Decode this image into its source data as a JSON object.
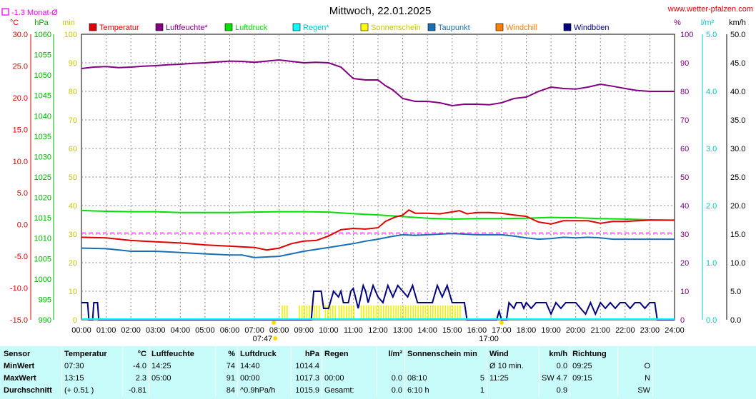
{
  "page": {
    "title": "Mittwoch, 22.01.2025",
    "site": "www.wetter-pfalzen.com",
    "month_avg_label": "-1.3 Monat-Ø"
  },
  "chart_data": {
    "type": "line",
    "title": "Mittwoch, 22.01.2025",
    "x_ticks": [
      "00:00",
      "01:00",
      "02:00",
      "03:00",
      "04:00",
      "05:00",
      "06:00",
      "07:00",
      "08:00",
      "09:00",
      "10:00",
      "11:00",
      "12:00",
      "13:00",
      "14:00",
      "15:00",
      "16:00",
      "17:00",
      "18:00",
      "19:00",
      "20:00",
      "21:00",
      "22:00",
      "23:00",
      "24:00"
    ],
    "sunrise": "07:47",
    "sunset": "17:00",
    "month_avg_temperature": -1.3,
    "axes": {
      "temp": {
        "unit": "°C",
        "range": [
          -15,
          30
        ],
        "ticks": [
          "30.0",
          "25.0",
          "20.0",
          "15.0",
          "10.0",
          "5.0",
          "0.0",
          "-5.0",
          "-10.0",
          "-15.0"
        ],
        "color": "#e00000"
      },
      "pressure": {
        "unit": "hPa",
        "range": [
          990,
          1060
        ],
        "ticks": [
          "1060",
          "1055",
          "1050",
          "1045",
          "1040",
          "1035",
          "1030",
          "1025",
          "1020",
          "1015",
          "1010",
          "1005",
          "1000",
          "995",
          "990"
        ],
        "color": "#00b000"
      },
      "minutes": {
        "unit": "min",
        "range": [
          0,
          100
        ],
        "ticks": [
          "100",
          "90",
          "80",
          "70",
          "60",
          "50",
          "40",
          "30",
          "20",
          "10",
          "0"
        ],
        "color": "#c8c800"
      },
      "humidity": {
        "unit": "%",
        "range": [
          0,
          100
        ],
        "ticks": [
          "100",
          "90",
          "80",
          "70",
          "60",
          "50",
          "40",
          "30",
          "20",
          "10",
          "0"
        ],
        "color": "#800080"
      },
      "rain": {
        "unit": "l/m²",
        "range": [
          0,
          5
        ],
        "ticks": [
          "5.0",
          "4.0",
          "3.0",
          "2.0",
          "1.0",
          "0.0"
        ],
        "color": "#00c8c8"
      },
      "wind": {
        "unit": "km/h",
        "range": [
          0,
          50
        ],
        "ticks": [
          "50.0",
          "45.0",
          "40.0",
          "35.0",
          "30.0",
          "25.0",
          "20.0",
          "15.0",
          "10.0",
          "5.0",
          "0.0"
        ],
        "color": "#000000"
      }
    },
    "legend": [
      {
        "name": "Temperatur",
        "color": "#e00000"
      },
      {
        "name": "Luftfeuchte*",
        "color": "#800080"
      },
      {
        "name": "Luftdruck",
        "color": "#00e000"
      },
      {
        "name": "Regen*",
        "color": "#00ffff"
      },
      {
        "name": "Sonnenschein",
        "color": "#ffff00"
      },
      {
        "name": "Taupunkt",
        "color": "#1a6fb3"
      },
      {
        "name": "Windchill",
        "color": "#ff8000"
      },
      {
        "name": "Windböen",
        "color": "#000080"
      }
    ],
    "series": [
      {
        "name": "Luftfeuchte*",
        "axis": "humidity",
        "color": "#800080",
        "points": [
          [
            0,
            88
          ],
          [
            0.5,
            88.5
          ],
          [
            1,
            88.7
          ],
          [
            1.5,
            88.3
          ],
          [
            2,
            88.5
          ],
          [
            2.5,
            88.8
          ],
          [
            3,
            89
          ],
          [
            3.5,
            89.3
          ],
          [
            4,
            89.5
          ],
          [
            4.5,
            89.8
          ],
          [
            5,
            90
          ],
          [
            5.5,
            90.3
          ],
          [
            6,
            90.6
          ],
          [
            6.5,
            90.5
          ],
          [
            7,
            90.2
          ],
          [
            7.5,
            90.6
          ],
          [
            8,
            91
          ],
          [
            8.5,
            90.5
          ],
          [
            9,
            90
          ],
          [
            9.5,
            90.2
          ],
          [
            10,
            90
          ],
          [
            10.5,
            88.5
          ],
          [
            11,
            84.5
          ],
          [
            11.5,
            84
          ],
          [
            12,
            84
          ],
          [
            12.3,
            82
          ],
          [
            12.6,
            80.5
          ],
          [
            13,
            77.5
          ],
          [
            13.5,
            76.5
          ],
          [
            14,
            76.5
          ],
          [
            14.5,
            76
          ],
          [
            15,
            75
          ],
          [
            15.5,
            75.5
          ],
          [
            16,
            75.5
          ],
          [
            16.5,
            75.3
          ],
          [
            17,
            76
          ],
          [
            17.5,
            77.5
          ],
          [
            18,
            78
          ],
          [
            18.5,
            80
          ],
          [
            19,
            81.5
          ],
          [
            19.5,
            81
          ],
          [
            20,
            80.8
          ],
          [
            20.5,
            81.5
          ],
          [
            21,
            82.5
          ],
          [
            21.5,
            81.8
          ],
          [
            22,
            81
          ],
          [
            22.5,
            80.3
          ],
          [
            23,
            80
          ],
          [
            24,
            80
          ]
        ]
      },
      {
        "name": "Luftdruck",
        "axis": "pressure",
        "color": "#00e000",
        "points": [
          [
            0,
            1016.8
          ],
          [
            1,
            1016.6
          ],
          [
            2,
            1016.5
          ],
          [
            3,
            1016.5
          ],
          [
            4,
            1016.3
          ],
          [
            5,
            1016.3
          ],
          [
            6,
            1016.3
          ],
          [
            7,
            1016.4
          ],
          [
            8,
            1016.5
          ],
          [
            9,
            1016.5
          ],
          [
            10,
            1016.4
          ],
          [
            11,
            1016
          ],
          [
            12,
            1015.7
          ],
          [
            13,
            1015.3
          ],
          [
            14,
            1014.9
          ],
          [
            15,
            1014.7
          ],
          [
            16,
            1014.8
          ],
          [
            17,
            1014.8
          ],
          [
            18,
            1014.9
          ],
          [
            19,
            1015.1
          ],
          [
            20,
            1015.0
          ],
          [
            21,
            1014.8
          ],
          [
            22,
            1014.7
          ],
          [
            23,
            1014.5
          ],
          [
            24,
            1014.4
          ]
        ]
      },
      {
        "name": "Temperatur",
        "axis": "temp",
        "color": "#e00000",
        "points": [
          [
            0,
            -2.0
          ],
          [
            1,
            -2.1
          ],
          [
            2,
            -2.5
          ],
          [
            3,
            -2.7
          ],
          [
            4,
            -2.9
          ],
          [
            5,
            -3.2
          ],
          [
            6,
            -3.4
          ],
          [
            7,
            -3.6
          ],
          [
            7.5,
            -4.0
          ],
          [
            8,
            -3.7
          ],
          [
            8.5,
            -3.0
          ],
          [
            9,
            -2.6
          ],
          [
            9.5,
            -2.5
          ],
          [
            10,
            -1.8
          ],
          [
            10.5,
            -0.8
          ],
          [
            11,
            -0.6
          ],
          [
            11.5,
            -0.7
          ],
          [
            12,
            -0.5
          ],
          [
            12.3,
            0.5
          ],
          [
            12.7,
            1.2
          ],
          [
            13,
            1.5
          ],
          [
            13.25,
            2.3
          ],
          [
            13.5,
            1.8
          ],
          [
            14,
            1.8
          ],
          [
            14.5,
            1.7
          ],
          [
            15,
            2.0
          ],
          [
            15.3,
            2.2
          ],
          [
            15.6,
            1.7
          ],
          [
            16,
            1.9
          ],
          [
            16.5,
            1.9
          ],
          [
            17,
            1.8
          ],
          [
            17.5,
            1.5
          ],
          [
            18,
            1.3
          ],
          [
            18.5,
            0.4
          ],
          [
            19,
            0.1
          ],
          [
            19.5,
            0.6
          ],
          [
            20,
            0.6
          ],
          [
            20.5,
            0.6
          ],
          [
            21,
            0.2
          ],
          [
            21.5,
            0.5
          ],
          [
            22,
            0.5
          ],
          [
            23,
            0.7
          ],
          [
            24,
            0.7
          ]
        ]
      },
      {
        "name": "Taupunkt",
        "axis": "temp",
        "color": "#1a6fb3",
        "points": [
          [
            0,
            -3.7
          ],
          [
            1,
            -3.8
          ],
          [
            2,
            -4.2
          ],
          [
            3,
            -4.2
          ],
          [
            4,
            -4.4
          ],
          [
            5,
            -4.6
          ],
          [
            6,
            -4.8
          ],
          [
            6.5,
            -4.8
          ],
          [
            7,
            -5.2
          ],
          [
            8,
            -5.0
          ],
          [
            8.5,
            -4.6
          ],
          [
            9,
            -4.2
          ],
          [
            10,
            -3.6
          ],
          [
            10.5,
            -3.3
          ],
          [
            11,
            -3.0
          ],
          [
            11.5,
            -2.6
          ],
          [
            12,
            -2.3
          ],
          [
            12.5,
            -1.9
          ],
          [
            13,
            -1.6
          ],
          [
            13.5,
            -1.7
          ],
          [
            14,
            -1.6
          ],
          [
            14.5,
            -1.5
          ],
          [
            15,
            -1.4
          ],
          [
            15.5,
            -1.5
          ],
          [
            16,
            -1.6
          ],
          [
            17,
            -1.6
          ],
          [
            17.5,
            -1.8
          ],
          [
            18,
            -2.1
          ],
          [
            18.5,
            -2.3
          ],
          [
            19,
            -2.2
          ],
          [
            19.5,
            -2.0
          ],
          [
            20,
            -2.1
          ],
          [
            20.5,
            -2.0
          ],
          [
            21,
            -2.1
          ],
          [
            21.5,
            -2.3
          ],
          [
            22,
            -2.3
          ],
          [
            23,
            -2.3
          ],
          [
            24,
            -2.3
          ]
        ]
      },
      {
        "name": "Windböen",
        "axis": "wind",
        "color": "#000080",
        "points": [
          [
            0,
            3
          ],
          [
            0.25,
            3
          ],
          [
            0.3,
            0
          ],
          [
            0.45,
            0
          ],
          [
            0.5,
            3
          ],
          [
            0.65,
            3
          ],
          [
            0.7,
            0
          ],
          [
            9.3,
            0
          ],
          [
            9.4,
            5
          ],
          [
            9.7,
            5
          ],
          [
            9.8,
            2
          ],
          [
            10,
            2
          ],
          [
            10.2,
            5
          ],
          [
            10.4,
            4
          ],
          [
            10.5,
            5
          ],
          [
            10.6,
            3
          ],
          [
            10.8,
            3
          ],
          [
            10.9,
            5
          ],
          [
            11,
            5.5
          ],
          [
            11.2,
            2
          ],
          [
            11.4,
            6
          ],
          [
            11.5,
            5
          ],
          [
            11.6,
            3
          ],
          [
            11.8,
            6
          ],
          [
            12,
            4
          ],
          [
            12.2,
            3
          ],
          [
            12.4,
            6
          ],
          [
            12.6,
            4
          ],
          [
            12.8,
            6
          ],
          [
            13,
            5
          ],
          [
            13.2,
            4
          ],
          [
            13.4,
            6
          ],
          [
            13.6,
            3
          ],
          [
            13.8,
            3
          ],
          [
            14,
            3
          ],
          [
            14.2,
            3
          ],
          [
            14.4,
            6
          ],
          [
            14.6,
            4
          ],
          [
            14.8,
            6
          ],
          [
            15,
            3
          ],
          [
            15.2,
            3
          ],
          [
            15.5,
            3
          ],
          [
            15.6,
            0
          ],
          [
            16.8,
            0
          ],
          [
            16.9,
            1.5
          ],
          [
            17.0,
            0
          ],
          [
            17.2,
            0
          ],
          [
            17.3,
            3
          ],
          [
            17.5,
            2
          ],
          [
            17.6,
            3
          ],
          [
            17.8,
            3
          ],
          [
            17.9,
            2
          ],
          [
            18,
            3
          ],
          [
            18.2,
            2
          ],
          [
            18.4,
            3
          ],
          [
            18.8,
            3
          ],
          [
            19.0,
            1
          ],
          [
            19.2,
            3
          ],
          [
            19.4,
            2
          ],
          [
            19.6,
            3
          ],
          [
            20,
            3
          ],
          [
            20.2,
            2
          ],
          [
            20.4,
            1
          ],
          [
            20.6,
            3
          ],
          [
            20.8,
            1
          ],
          [
            21,
            3
          ],
          [
            21.2,
            2
          ],
          [
            21.4,
            3
          ],
          [
            21.6,
            2
          ],
          [
            21.8,
            3
          ],
          [
            22,
            3
          ],
          [
            22.2,
            2
          ],
          [
            22.4,
            3
          ],
          [
            22.6,
            3
          ],
          [
            22.8,
            2
          ],
          [
            23,
            3
          ],
          [
            23.2,
            3
          ],
          [
            23.3,
            0
          ],
          [
            24,
            0
          ]
        ]
      }
    ],
    "sunshine_intervals": [
      [
        8.1,
        8.3
      ],
      [
        8.8,
        9.6
      ],
      [
        9.85,
        10.3
      ],
      [
        10.4,
        11.0
      ],
      [
        11.3,
        15.3
      ]
    ]
  },
  "stats": {
    "headers": {
      "sensor": "Sensor",
      "temp": "Temperatur",
      "temp_unit": "°C",
      "hum": "Luftfeuchte",
      "hum_unit": "%",
      "press": "Luftdruck",
      "press_unit": "hPa",
      "rain": "Regen",
      "rain_unit": "l/m²",
      "sun": "Sonnenschein min",
      "wind": "Wind",
      "wind_unit": "km/h",
      "dir": "Richtung"
    },
    "rows": [
      {
        "label": "MinWert",
        "temp_time": "07:30",
        "temp_val": "-4.0",
        "hum_time": "14:25",
        "hum_val": "74",
        "press_time": "14:40",
        "press_val": "1014.4",
        "rain_time": "",
        "rain_val": "",
        "sun_time": "",
        "sun_val": "",
        "wind_time": "Ø 10 min.",
        "wind_val": "0.0",
        "dir_time": "09:25",
        "dir_val": "O"
      },
      {
        "label": "MaxWert",
        "temp_time": "13:15",
        "temp_val": "2.3",
        "hum_time": "05:00",
        "hum_val": "91",
        "press_time": "00:00",
        "press_val": "1017.3",
        "rain_time": "00:00",
        "rain_val": "0.0",
        "sun_time": "08:10",
        "sun_val": "5",
        "wind_time": "11:25",
        "wind_val": "SW 4.7",
        "dir_time": "09:15",
        "dir_val": "N"
      },
      {
        "label": "Durchschnitt",
        "temp_time": "(+ 0.51 )",
        "temp_val": "-0.81",
        "hum_time": "",
        "hum_val": "84",
        "press_time": "^0.9hPa/h",
        "press_val": "1015.9",
        "rain_time": "Gesamt:",
        "rain_val": "0.0",
        "sun_time": "6:10 h",
        "sun_val": "1",
        "wind_time": "",
        "wind_val": "0.9",
        "dir_time": "",
        "dir_val": "SW"
      }
    ]
  }
}
